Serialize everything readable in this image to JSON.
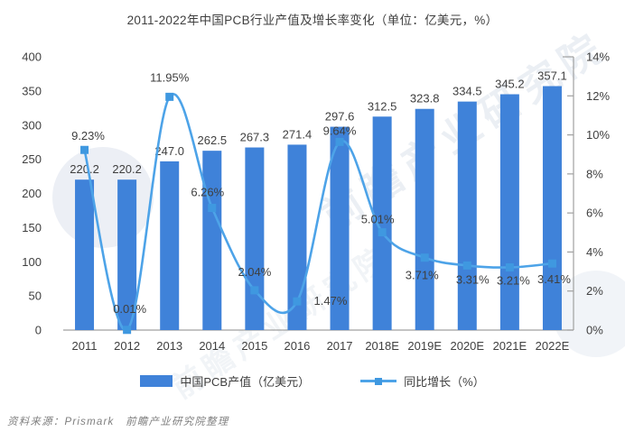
{
  "title": "2011-2022年中国PCB行业产值及增长率变化（单位：亿美元，%）",
  "chart_data": {
    "type": "bar",
    "subtype": "bar+line combo, dual axis",
    "categories": [
      "2011",
      "2012",
      "2013",
      "2014",
      "2015",
      "2016",
      "2017",
      "2018E",
      "2019E",
      "2020E",
      "2021E",
      "2022E"
    ],
    "series": [
      {
        "name": "中国PCB产值（亿美元）",
        "type": "bar",
        "axis": "left",
        "values": [
          220.2,
          220.2,
          247.0,
          262.5,
          267.3,
          271.4,
          297.6,
          312.5,
          323.8,
          334.5,
          345.2,
          357.1
        ],
        "labels": [
          "220.2",
          "220.2",
          "247.0",
          "262.5",
          "267.3",
          "271.4",
          "297.6",
          "312.5",
          "323.8",
          "334.5",
          "345.2",
          "357.1"
        ],
        "color": "#3f82d9"
      },
      {
        "name": "同比增长（%）",
        "type": "line",
        "axis": "right",
        "values": [
          9.23,
          0.01,
          11.95,
          6.26,
          2.04,
          1.47,
          9.64,
          5.01,
          3.71,
          3.31,
          3.21,
          3.41
        ],
        "labels": [
          "9.23%",
          "0.01%",
          "11.95%",
          "6.26%",
          "2.04%",
          "1.47%",
          "9.64%",
          "5.01%",
          "3.71%",
          "3.31%",
          "3.21%",
          "3.41%"
        ],
        "color": "#4da3e8",
        "marker_color": "#3f98e0",
        "marker": "square",
        "smooth": true
      }
    ],
    "left_axis": {
      "min": 0,
      "max": 400,
      "step": 50,
      "ticks": [
        "0",
        "50",
        "100",
        "150",
        "200",
        "250",
        "300",
        "350",
        "400"
      ]
    },
    "right_axis": {
      "min": 0,
      "max": 14,
      "step": 2,
      "ticks": [
        "0%",
        "2%",
        "4%",
        "6%",
        "8%",
        "10%",
        "12%",
        "14%"
      ]
    },
    "grid": false,
    "legend_position": "bottom",
    "label_color": "#3f3f3f",
    "axis_color": "#a0a0a0"
  },
  "legend": {
    "items": [
      {
        "label": "中国PCB产值（亿美元）",
        "swatch": "bar"
      },
      {
        "label": "同比增长（%）",
        "swatch": "line-marker"
      }
    ]
  },
  "footer": {
    "source_text": "资料来源：Prismark　前瞻产业研究院整理"
  },
  "watermark": {
    "text": "前瞻产业研究院",
    "subtext": "前瞻产业研究院"
  }
}
